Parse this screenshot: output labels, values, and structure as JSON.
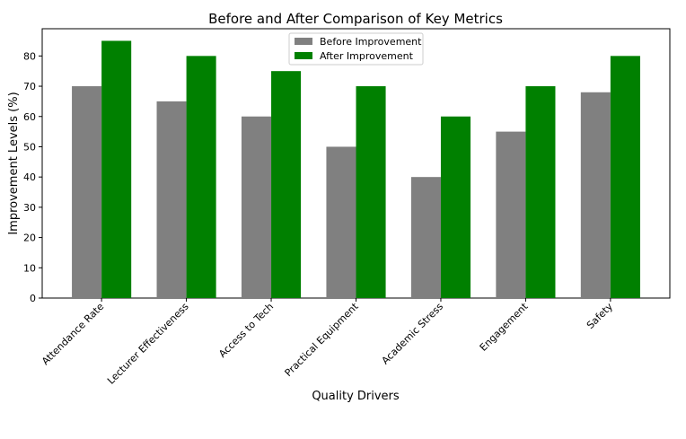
{
  "chart_data": {
    "type": "bar",
    "title": "Before and After Comparison of Key Metrics",
    "xlabel": "Quality Drivers",
    "ylabel": "Improvement Levels (%)",
    "ylim": [
      0,
      89
    ],
    "yticks": [
      0,
      10,
      20,
      30,
      40,
      50,
      60,
      70,
      80
    ],
    "categories": [
      "Attendance Rate",
      "Lecturer Effectiveness",
      "Access to Tech",
      "Practical Equipment",
      "Academic Stress",
      "Engagement",
      "Safety"
    ],
    "series": [
      {
        "name": "Before Improvement",
        "color": "#808080",
        "values": [
          70,
          65,
          60,
          50,
          40,
          55,
          68
        ]
      },
      {
        "name": "After Improvement",
        "color": "#008000",
        "values": [
          85,
          80,
          75,
          70,
          60,
          70,
          80
        ]
      }
    ],
    "legend_position": "top-center",
    "grid": false
  }
}
